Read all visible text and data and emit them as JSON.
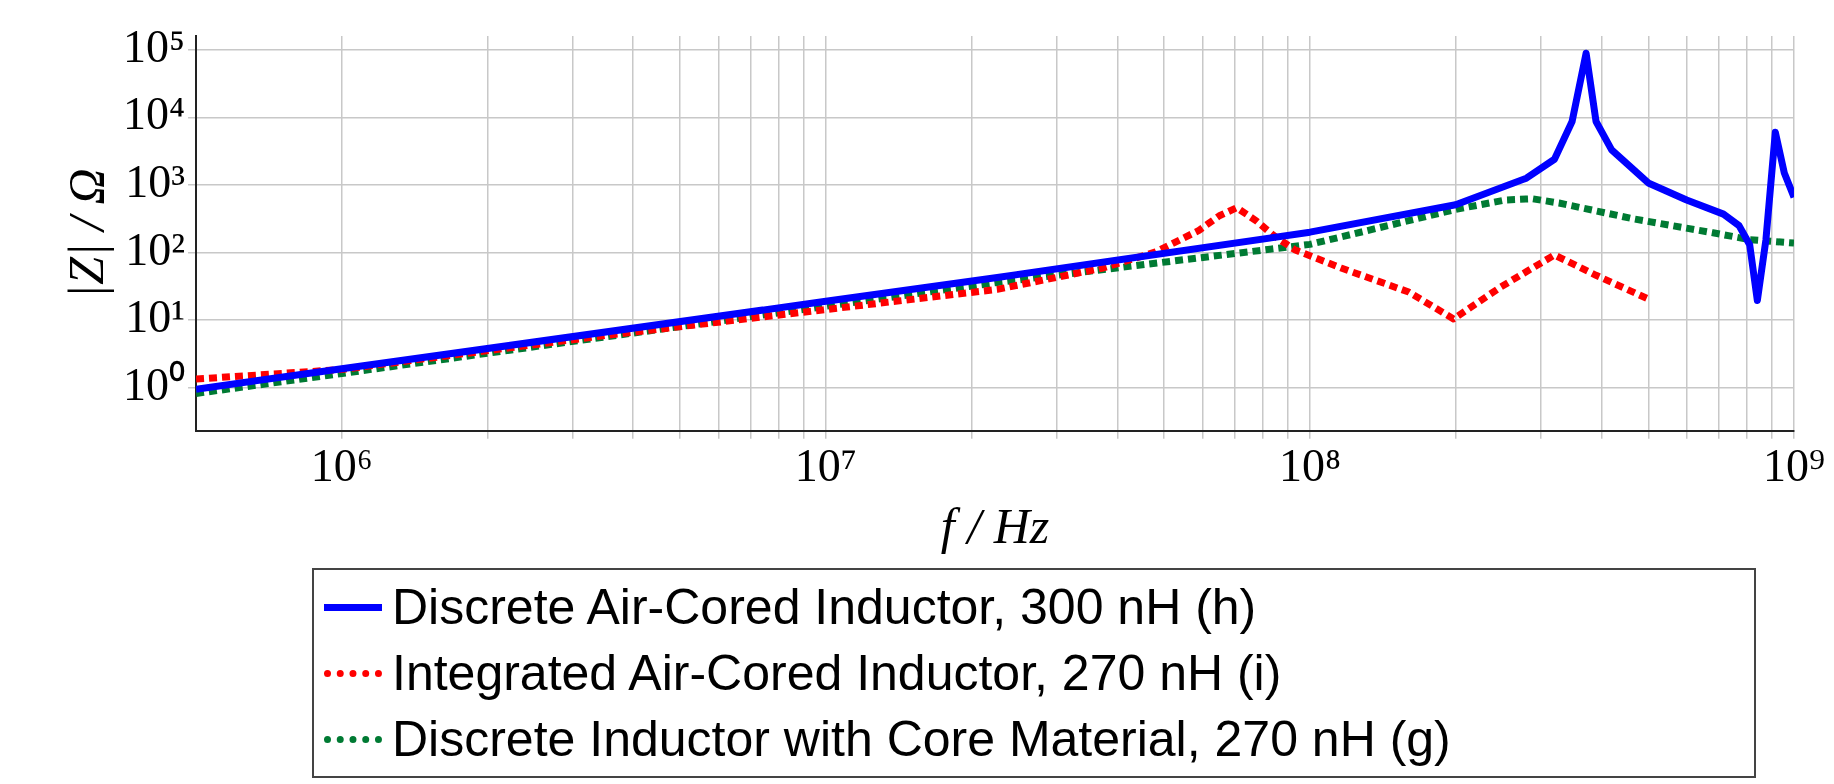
{
  "chart_data": {
    "type": "line",
    "xlabel": "f / Hz",
    "ylabel": "|Z| / Ω",
    "log": "xy",
    "grid": true,
    "legend": "bottom",
    "marker": "none",
    "xlim": [
      500000,
      1000000000
    ],
    "ylim": [
      0.23,
      160000
    ],
    "xticks": [
      {
        "value": 1000000,
        "label": "10⁶"
      },
      {
        "value": 2000000,
        "label": null
      },
      {
        "value": 3000000,
        "label": null
      },
      {
        "value": 4000000,
        "label": null
      },
      {
        "value": 5000000,
        "label": null
      },
      {
        "value": 6000000,
        "label": null
      },
      {
        "value": 7000000,
        "label": null
      },
      {
        "value": 8000000,
        "label": null
      },
      {
        "value": 9000000,
        "label": null
      },
      {
        "value": 10000000,
        "label": "10⁷"
      },
      {
        "value": 20000000,
        "label": null
      },
      {
        "value": 30000000,
        "label": null
      },
      {
        "value": 40000000,
        "label": null
      },
      {
        "value": 50000000,
        "label": null
      },
      {
        "value": 60000000,
        "label": null
      },
      {
        "value": 70000000,
        "label": null
      },
      {
        "value": 80000000,
        "label": null
      },
      {
        "value": 90000000,
        "label": null
      },
      {
        "value": 100000000,
        "label": "10⁸"
      },
      {
        "value": 200000000,
        "label": null
      },
      {
        "value": 300000000,
        "label": null
      },
      {
        "value": 400000000,
        "label": null
      },
      {
        "value": 500000000,
        "label": null
      },
      {
        "value": 600000000,
        "label": null
      },
      {
        "value": 700000000,
        "label": null
      },
      {
        "value": 800000000,
        "label": null
      },
      {
        "value": 900000000,
        "label": null
      },
      {
        "value": 1000000000,
        "label": "10⁹"
      }
    ],
    "yticks": [
      {
        "value": 1,
        "label": "10⁰"
      },
      {
        "value": 10,
        "label": "10¹"
      },
      {
        "value": 100,
        "label": "10²"
      },
      {
        "value": 1000,
        "label": "10³"
      },
      {
        "value": 10000,
        "label": "10⁴"
      },
      {
        "value": 100000,
        "label": "10⁵"
      }
    ],
    "series": [
      {
        "name": "Discrete Air-Cored Inductor, 300 nH (h)",
        "color": "#0000ff",
        "line_style": "solid",
        "x": [
          500000,
          1000000,
          10000000,
          22600000,
          100000000,
          200000000,
          280000000,
          320000000,
          348000000,
          372000000,
          390000000,
          420000000,
          500000000,
          600000000,
          715000000,
          770000000,
          810000000,
          840000000,
          875000000,
          915000000,
          955000000,
          1000000000
        ],
        "values": [
          0.95,
          1.9,
          19,
          42.7,
          200,
          510,
          1260,
          2400,
          8700,
          89000,
          8700,
          3300,
          1070,
          600,
          370,
          250,
          130,
          19.5,
          155,
          6000,
          1500,
          660
        ]
      },
      {
        "name": "Integrated Air-Cored Inductor, 270 nH (i)",
        "color": "#ff0000",
        "line_style": "dotted",
        "x": [
          500000,
          1000000,
          3560000,
          22600000,
          37400000,
          48000000,
          59000000,
          65000000,
          70600000,
          77600000,
          84000000,
          93000000,
          116000000,
          160000000,
          198000000,
          248000000,
          320000000,
          390000000,
          500000000
        ],
        "values": [
          1.34,
          1.86,
          6,
          28.5,
          59,
          102,
          213,
          350,
          460,
          292,
          180,
          110,
          59,
          26,
          10.4,
          31,
          92,
          46,
          20.5
        ]
      },
      {
        "name": "Discrete Inductor with Core Material, 270 nH (g)",
        "color": "#007a33",
        "line_style": "dotted",
        "x": [
          500000,
          1000000,
          10000000,
          22600000,
          100000000,
          200000000,
          254000000,
          288000000,
          327000000,
          466000000,
          680000000,
          810000000,
          1000000000
        ],
        "values": [
          0.82,
          1.62,
          16,
          36,
          132,
          435,
          600,
          625,
          540,
          315,
          196,
          155,
          138
        ]
      }
    ]
  }
}
